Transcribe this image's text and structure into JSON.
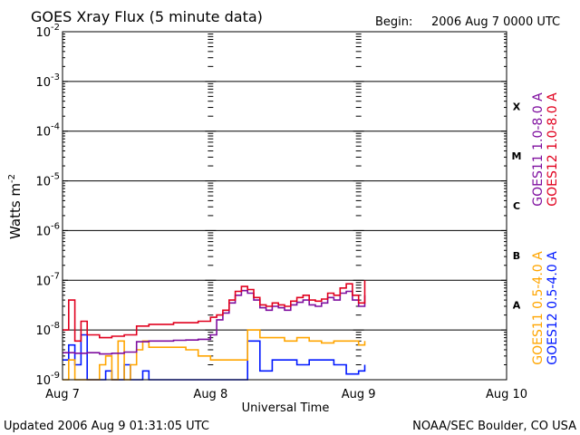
{
  "header": {
    "title": "GOES Xray Flux (5 minute data)",
    "begin_label": "Begin:",
    "begin_value": "2006 Aug 7 0000 UTC"
  },
  "footer": {
    "updated": "Updated 2006 Aug  9 01:31:05 UTC",
    "source": "NOAA/SEC Boulder, CO USA"
  },
  "chart_data": {
    "type": "line",
    "title": "GOES Xray Flux (5 minute data)",
    "xlabel": "Universal Time",
    "ylabel": "Watts m",
    "ylabel_sup": "-2",
    "y_scale": "log",
    "ylim": [
      1e-09,
      0.01
    ],
    "xlim": [
      0,
      72
    ],
    "x_unit": "hours since 2006 Aug 7 0000 UTC",
    "x_ticks": [
      {
        "x": 0,
        "label": "Aug 7"
      },
      {
        "x": 24,
        "label": "Aug 8"
      },
      {
        "x": 48,
        "label": "Aug 9"
      },
      {
        "x": 72,
        "label": "Aug 10"
      }
    ],
    "y_ticks": [
      {
        "exp": -2,
        "base": "10",
        "sup": "-2"
      },
      {
        "exp": -3,
        "base": "10",
        "sup": "-3"
      },
      {
        "exp": -4,
        "base": "10",
        "sup": "-4"
      },
      {
        "exp": -5,
        "base": "10",
        "sup": "-5"
      },
      {
        "exp": -6,
        "base": "10",
        "sup": "-6"
      },
      {
        "exp": -7,
        "base": "10",
        "sup": "-7"
      },
      {
        "exp": -8,
        "base": "10",
        "sup": "-8"
      },
      {
        "exp": -9,
        "base": "10",
        "sup": "-9"
      }
    ],
    "flare_classes": [
      {
        "label": "X",
        "exp": -3.5
      },
      {
        "label": "M",
        "exp": -4.5
      },
      {
        "label": "C",
        "exp": -5.5
      },
      {
        "label": "B",
        "exp": -6.5
      },
      {
        "label": "A",
        "exp": -7.5
      }
    ],
    "legend": {
      "placement": "right-vertical",
      "upper": [
        {
          "name": "GOES11 1.0-8.0 A",
          "color": "#7f0f9f"
        },
        {
          "name": "GOES12 1.0-8.0 A",
          "color": "#e0001e"
        }
      ],
      "lower": [
        {
          "name": "GOES11 0.5-4.0 A",
          "color": "#ffa500"
        },
        {
          "name": "GOES12 0.5-4.0 A",
          "color": "#0018ff"
        }
      ]
    },
    "series": [
      {
        "name": "GOES11 1.0-8.0 A",
        "color": "#7f0f9f",
        "x": [
          0,
          2,
          4,
          6,
          8,
          10,
          12,
          14,
          16,
          18,
          20,
          22,
          24,
          25,
          26,
          27,
          28,
          29,
          30,
          31,
          32,
          33,
          34,
          35,
          36,
          37,
          38,
          39,
          40,
          41,
          42,
          43,
          44,
          45,
          46,
          47,
          48,
          49
        ],
        "y": [
          3.5e-09,
          3.4e-09,
          3.5e-09,
          3.3e-09,
          3.4e-09,
          3.6e-09,
          5.8e-09,
          6e-09,
          6e-09,
          6.2e-09,
          6.3e-09,
          6.5e-09,
          8e-09,
          1.6e-08,
          2.2e-08,
          3.5e-08,
          5e-08,
          6.2e-08,
          5.5e-08,
          4e-08,
          2.8e-08,
          2.5e-08,
          3e-08,
          2.8e-08,
          2.5e-08,
          3.2e-08,
          3.6e-08,
          4e-08,
          3.2e-08,
          3e-08,
          3.5e-08,
          4.5e-08,
          4e-08,
          5.5e-08,
          6e-08,
          4e-08,
          3e-08,
          5e-08
        ]
      },
      {
        "name": "GOES12 1.0-8.0 A",
        "color": "#e0001e",
        "x": [
          0,
          1,
          2,
          3,
          4,
          6,
          8,
          10,
          12,
          14,
          16,
          18,
          20,
          22,
          24,
          25,
          26,
          27,
          28,
          29,
          30,
          31,
          32,
          33,
          34,
          35,
          36,
          37,
          38,
          39,
          40,
          41,
          42,
          43,
          44,
          45,
          46,
          47,
          48,
          49
        ],
        "y": [
          1e-08,
          4e-08,
          6e-09,
          1.5e-08,
          8e-09,
          7e-09,
          7.5e-09,
          8e-09,
          1.2e-08,
          1.3e-08,
          1.3e-08,
          1.4e-08,
          1.4e-08,
          1.5e-08,
          1.8e-08,
          2e-08,
          2.5e-08,
          4e-08,
          6e-08,
          7.5e-08,
          6.5e-08,
          4.5e-08,
          3.2e-08,
          3e-08,
          3.5e-08,
          3.2e-08,
          3e-08,
          3.8e-08,
          4.5e-08,
          5e-08,
          4e-08,
          3.8e-08,
          4.2e-08,
          5.5e-08,
          5e-08,
          7e-08,
          8.5e-08,
          5e-08,
          3.5e-08,
          1e-07
        ]
      },
      {
        "name": "GOES11 0.5-4.0 A",
        "color": "#ffa500",
        "x": [
          0,
          1,
          2,
          3,
          4,
          5,
          6,
          7,
          8,
          9,
          10,
          11,
          12,
          13,
          14,
          16,
          18,
          20,
          22,
          24,
          26,
          28,
          30,
          32,
          34,
          36,
          38,
          40,
          42,
          44,
          46,
          48,
          49
        ],
        "y": [
          1e-09,
          2.5e-09,
          1e-09,
          1e-09,
          1e-09,
          1e-09,
          2e-09,
          3e-09,
          1e-09,
          6e-09,
          1e-09,
          2e-09,
          4e-09,
          6e-09,
          4.5e-09,
          4.5e-09,
          4.5e-09,
          4e-09,
          3e-09,
          2.5e-09,
          2.5e-09,
          2.5e-09,
          1e-08,
          7e-09,
          7e-09,
          6e-09,
          7e-09,
          6e-09,
          5.5e-09,
          6e-09,
          6e-09,
          5e-09,
          6e-09
        ]
      },
      {
        "name": "GOES12 0.5-4.0 A",
        "color": "#0018ff",
        "x": [
          0,
          1,
          2,
          3,
          4,
          5,
          6,
          7,
          8,
          9,
          10,
          11,
          12,
          13,
          14,
          16,
          18,
          20,
          22,
          24,
          26,
          28,
          30,
          32,
          34,
          36,
          38,
          40,
          42,
          44,
          46,
          47,
          48,
          49
        ],
        "y": [
          2.5e-09,
          5e-09,
          2e-09,
          8e-09,
          1e-09,
          1e-09,
          1e-09,
          1.5e-09,
          1e-09,
          1e-09,
          2e-09,
          1e-09,
          1e-09,
          1.5e-09,
          1e-09,
          1e-09,
          1e-09,
          1e-09,
          1e-09,
          1e-09,
          1e-09,
          1e-09,
          6e-09,
          1.5e-09,
          2.5e-09,
          2.5e-09,
          2e-09,
          2.5e-09,
          2.5e-09,
          2e-09,
          1.3e-09,
          1.3e-09,
          1.5e-09,
          2e-09
        ]
      }
    ]
  }
}
